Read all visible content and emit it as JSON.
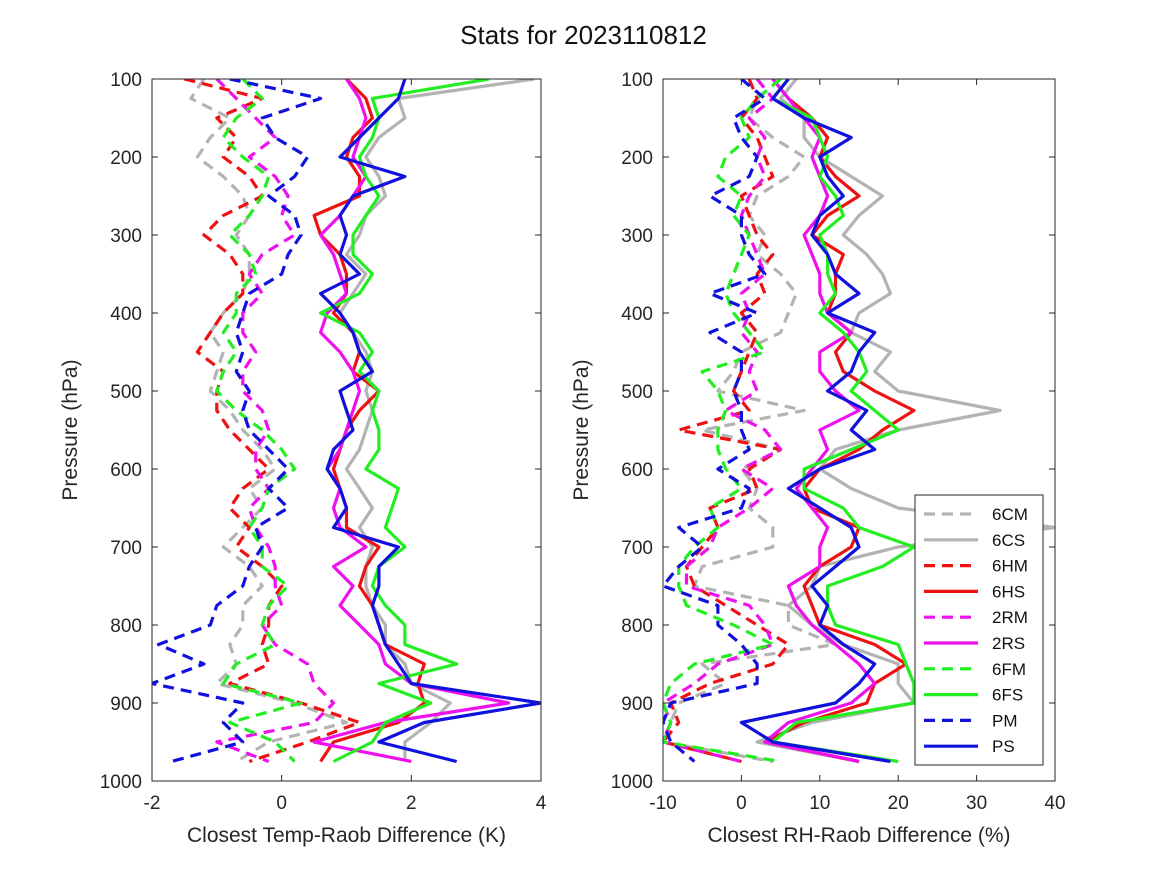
{
  "title": "Stats for 2023110812",
  "chart_data": [
    {
      "type": "line",
      "xlabel": "Closest Temp-Raob Difference (K)",
      "ylabel": "Pressure (hPa)",
      "xlim": [
        -2,
        4
      ],
      "ylim": [
        1000,
        100
      ],
      "x_ticks": [
        -2,
        0,
        2,
        4
      ],
      "y_ticks": [
        100,
        200,
        300,
        400,
        500,
        600,
        700,
        800,
        900,
        1000
      ],
      "y": [
        100,
        125,
        150,
        175,
        200,
        225,
        250,
        275,
        300,
        325,
        350,
        375,
        400,
        425,
        450,
        475,
        500,
        525,
        550,
        575,
        600,
        625,
        650,
        675,
        700,
        725,
        750,
        775,
        800,
        825,
        850,
        875,
        900,
        925,
        950,
        975
      ],
      "series": [
        {
          "name": "6CM",
          "color": "#b3b3b3",
          "dash": true,
          "x": [
            -1.2,
            -1.4,
            -0.8,
            -1.1,
            -1.3,
            -0.9,
            -0.6,
            -0.5,
            -0.7,
            -0.5,
            -0.5,
            -0.6,
            -0.9,
            -1.1,
            -0.9,
            -1.0,
            -1.1,
            -0.8,
            -0.6,
            -0.3,
            -0.1,
            -0.5,
            -0.3,
            -0.6,
            -0.9,
            -0.5,
            -0.3,
            -0.6,
            -0.6,
            -0.8,
            -0.7,
            -1.0,
            0.2,
            1.0,
            -0.2,
            -0.7
          ]
        },
        {
          "name": "6CS",
          "color": "#b3b3b3",
          "dash": false,
          "x": [
            3.9,
            1.8,
            1.9,
            1.5,
            1.3,
            1.5,
            1.6,
            1.3,
            1.2,
            1.0,
            1.3,
            1.1,
            0.9,
            1.1,
            1.3,
            1.4,
            1.3,
            1.4,
            1.3,
            1.2,
            1.0,
            1.2,
            1.4,
            1.2,
            1.4,
            1.3,
            1.3,
            1.4,
            1.6,
            1.6,
            1.9,
            2.0,
            2.6,
            2.3,
            1.9,
            1.9
          ]
        },
        {
          "name": "6HM",
          "color": "#ee1111",
          "dash": true,
          "x": [
            -1.5,
            -0.3,
            -1.0,
            -0.7,
            -0.9,
            -0.5,
            -0.3,
            -0.9,
            -1.2,
            -0.8,
            -0.6,
            -0.6,
            -0.9,
            -1.1,
            -1.3,
            -0.9,
            -1.0,
            -1.0,
            -0.8,
            -0.5,
            -0.2,
            -0.6,
            -0.8,
            -0.5,
            -0.7,
            -0.3,
            0.0,
            -0.2,
            -0.2,
            -0.3,
            -0.2,
            -0.8,
            0.3,
            1.2,
            0.4,
            -0.5
          ]
        },
        {
          "name": "6HS",
          "color": "#ee1111",
          "dash": false,
          "x": [
            1.0,
            1.3,
            1.4,
            1.1,
            1.0,
            1.2,
            1.2,
            0.5,
            0.6,
            0.9,
            1.0,
            1.0,
            0.8,
            1.1,
            1.2,
            1.1,
            1.5,
            1.2,
            1.0,
            0.9,
            0.8,
            0.9,
            1.0,
            1.0,
            1.5,
            1.3,
            1.2,
            1.4,
            1.5,
            1.6,
            2.2,
            2.1,
            2.2,
            1.8,
            0.8,
            0.6
          ]
        },
        {
          "name": "2RM",
          "color": "#ee11ee",
          "dash": true,
          "x": [
            -1.0,
            -0.7,
            -0.4,
            -0.1,
            -0.5,
            -0.1,
            0.1,
            0.0,
            0.2,
            -0.3,
            -0.5,
            -0.3,
            -0.6,
            -0.6,
            -0.4,
            -0.6,
            -0.6,
            -0.3,
            -0.2,
            -0.4,
            -0.4,
            -0.2,
            -0.5,
            -0.4,
            -0.2,
            -0.1,
            -0.1,
            0.0,
            -0.3,
            -0.1,
            0.4,
            0.5,
            0.8,
            0.5,
            -1.0,
            -0.2
          ]
        },
        {
          "name": "2RS",
          "color": "#ee11ee",
          "dash": false,
          "x": [
            1.0,
            1.2,
            1.3,
            1.2,
            1.1,
            1.3,
            1.1,
            0.9,
            0.6,
            0.8,
            0.9,
            1.0,
            0.7,
            0.6,
            0.9,
            1.1,
            1.2,
            1.1,
            1.0,
            0.9,
            0.7,
            0.9,
            0.8,
            0.9,
            1.3,
            0.8,
            1.1,
            0.9,
            1.2,
            1.5,
            1.6,
            2.0,
            3.5,
            1.6,
            0.5,
            2.0
          ]
        },
        {
          "name": "6FM",
          "color": "#22ee22",
          "dash": true,
          "x": [
            -0.6,
            -0.3,
            -0.7,
            -0.9,
            -0.6,
            -0.2,
            -0.3,
            -0.5,
            -0.8,
            -0.5,
            -0.4,
            -0.7,
            -0.7,
            -0.9,
            -0.7,
            -0.9,
            -1.0,
            -0.7,
            -0.3,
            0.0,
            0.2,
            -0.2,
            -0.3,
            -0.5,
            -0.3,
            -0.3,
            0.1,
            -0.2,
            -0.3,
            -0.1,
            -0.7,
            -0.9,
            0.3,
            -0.8,
            -0.1,
            0.2
          ]
        },
        {
          "name": "6FS",
          "color": "#22ee22",
          "dash": false,
          "x": [
            3.2,
            1.4,
            1.5,
            1.4,
            1.2,
            1.3,
            1.5,
            1.3,
            1.1,
            1.1,
            1.4,
            1.2,
            0.6,
            1.2,
            1.4,
            1.2,
            1.5,
            1.4,
            1.5,
            1.5,
            1.3,
            1.8,
            1.7,
            1.6,
            1.9,
            1.5,
            1.4,
            1.6,
            1.9,
            1.9,
            2.7,
            1.5,
            2.3,
            1.6,
            1.4,
            0.8
          ]
        },
        {
          "name": "PM",
          "color": "#1111dd",
          "dash": true,
          "x": [
            -0.8,
            0.6,
            -0.3,
            -0.1,
            0.4,
            0.2,
            -0.2,
            0.2,
            0.3,
            0.1,
            0.0,
            -0.5,
            -0.6,
            -0.7,
            -0.6,
            -0.7,
            -0.5,
            -0.6,
            -0.5,
            -0.2,
            0.1,
            -0.2,
            0.1,
            -0.4,
            -0.3,
            -0.5,
            -0.6,
            -1.0,
            -1.1,
            -1.9,
            -1.2,
            -2.0,
            -0.6,
            -0.9,
            -0.6,
            -1.7
          ]
        },
        {
          "name": "PS",
          "color": "#1111dd",
          "dash": false,
          "x": [
            1.9,
            1.8,
            1.5,
            1.2,
            0.9,
            1.9,
            1.1,
            0.9,
            1.0,
            0.9,
            1.2,
            0.6,
            0.9,
            1.1,
            1.2,
            1.4,
            0.9,
            1.0,
            1.1,
            0.8,
            0.7,
            0.9,
            1.0,
            0.8,
            1.8,
            1.5,
            1.5,
            1.4,
            1.5,
            1.6,
            1.8,
            2.0,
            4.0,
            2.2,
            1.5,
            2.7
          ]
        }
      ]
    },
    {
      "type": "line",
      "xlabel": "Closest RH-Raob Difference (%)",
      "ylabel": "Pressure (hPa)",
      "xlim": [
        -10,
        40
      ],
      "ylim": [
        1000,
        100
      ],
      "x_ticks": [
        -10,
        0,
        10,
        20,
        30,
        40
      ],
      "y_ticks": [
        100,
        200,
        300,
        400,
        500,
        600,
        700,
        800,
        900,
        1000
      ],
      "y": [
        100,
        125,
        150,
        175,
        200,
        225,
        250,
        275,
        300,
        325,
        350,
        375,
        400,
        425,
        450,
        475,
        500,
        525,
        550,
        575,
        600,
        625,
        650,
        675,
        700,
        725,
        750,
        775,
        800,
        825,
        850,
        875,
        900,
        925,
        950,
        975
      ],
      "legend": {
        "location": "bottom-right"
      },
      "series": [
        {
          "name": "6CM",
          "color": "#b3b3b3",
          "dash": true,
          "x": [
            5,
            2,
            1,
            4,
            8,
            6,
            2,
            1,
            3,
            2,
            5,
            7,
            6,
            5,
            0,
            -1,
            -3,
            8,
            -5,
            5,
            0,
            2,
            1,
            4,
            4,
            -5,
            -6,
            6,
            6,
            12,
            -5,
            -2,
            -8,
            -9,
            -10,
            4
          ]
        },
        {
          "name": "6CS",
          "color": "#b3b3b3",
          "dash": false,
          "x": [
            7,
            5,
            8,
            8,
            10,
            14,
            18,
            15,
            13,
            16,
            18,
            19,
            15,
            14,
            19,
            17,
            20,
            33,
            20,
            12,
            10,
            14,
            20,
            40,
            20,
            10,
            9,
            6,
            9,
            13,
            20,
            20,
            22,
            9,
            2,
            15
          ]
        },
        {
          "name": "6HM",
          "color": "#ee1111",
          "dash": true,
          "x": [
            1,
            2,
            0,
            2,
            3,
            4,
            0,
            1,
            2,
            4,
            2,
            3,
            0,
            2,
            1,
            0,
            -1,
            1,
            -8,
            5,
            1,
            2,
            -4,
            -3,
            -5,
            -7,
            -6,
            -2,
            2,
            6,
            4,
            -4,
            -9,
            -8,
            -10,
            0
          ]
        },
        {
          "name": "6HS",
          "color": "#ee1111",
          "dash": false,
          "x": [
            4,
            6,
            9,
            11,
            10,
            12,
            15,
            11,
            9,
            13,
            12,
            12,
            11,
            14,
            12,
            13,
            17,
            22,
            18,
            15,
            10,
            8,
            9,
            15,
            14,
            10,
            8,
            9,
            10,
            17,
            21,
            17,
            16,
            8,
            3,
            15
          ]
        },
        {
          "name": "2RM",
          "color": "#ee11ee",
          "dash": true,
          "x": [
            2,
            4,
            1,
            3,
            2,
            3,
            1,
            0,
            1,
            2,
            3,
            0,
            1,
            0,
            2,
            1,
            2,
            -2,
            3,
            5,
            0,
            4,
            1,
            -3,
            -4,
            -7,
            -7,
            1,
            3,
            4,
            -3,
            -6,
            -10,
            -9,
            -10,
            0
          ]
        },
        {
          "name": "2RS",
          "color": "#ee11ee",
          "dash": false,
          "x": [
            4,
            6,
            8,
            10,
            9,
            10,
            11,
            10,
            8,
            9,
            10,
            10,
            11,
            14,
            10,
            10,
            12,
            15,
            10,
            11,
            9,
            7,
            9,
            11,
            10,
            10,
            6,
            7,
            9,
            12,
            15,
            17,
            14,
            6,
            3,
            15
          ]
        },
        {
          "name": "6FM",
          "color": "#22ee22",
          "dash": true,
          "x": [
            5,
            2,
            0,
            1,
            -2,
            -3,
            0,
            -1,
            1,
            0,
            -1,
            -2,
            -1,
            1,
            3,
            -5,
            -3,
            -2,
            -3,
            -3,
            -2,
            0,
            -4,
            -3,
            -6,
            -8,
            -8,
            -7,
            -1,
            4,
            -6,
            -9,
            -10,
            -9,
            -10,
            5
          ]
        },
        {
          "name": "6FS",
          "color": "#22ee22",
          "dash": false,
          "x": [
            6,
            4,
            9,
            10,
            11,
            10,
            12,
            13,
            10,
            11,
            11,
            12,
            10,
            13,
            15,
            16,
            14,
            17,
            20,
            14,
            8,
            8,
            13,
            15,
            22,
            18,
            11,
            11,
            12,
            20,
            21,
            22,
            22,
            7,
            4,
            20
          ]
        },
        {
          "name": "PM",
          "color": "#1111dd",
          "dash": true,
          "x": [
            0,
            3,
            -1,
            0,
            2,
            1,
            -4,
            0,
            0,
            1,
            3,
            -4,
            2,
            -4,
            0,
            0,
            -1,
            0,
            0,
            1,
            -3,
            1,
            0,
            -8,
            -5,
            -8,
            -10,
            -3,
            -3,
            0,
            2,
            2,
            -9,
            -10,
            -9,
            -6
          ]
        },
        {
          "name": "PS",
          "color": "#1111dd",
          "dash": false,
          "x": [
            6,
            4,
            8,
            14,
            10,
            11,
            13,
            10,
            9,
            11,
            12,
            15,
            11,
            17,
            15,
            14,
            11,
            16,
            14,
            17,
            10,
            6,
            10,
            14,
            15,
            12,
            9,
            11,
            10,
            13,
            17,
            15,
            12,
            0,
            4,
            19
          ]
        }
      ]
    }
  ]
}
